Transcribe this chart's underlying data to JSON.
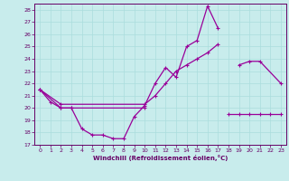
{
  "title": "",
  "xlabel": "Windchill (Refroidissement éolien,°C)",
  "ylabel": "",
  "bg_color": "#c8ecec",
  "line_color": "#990099",
  "grid_color": "#aadddd",
  "xlim": [
    -0.5,
    23.5
  ],
  "ylim": [
    17,
    28.5
  ],
  "yticks": [
    17,
    18,
    19,
    20,
    21,
    22,
    23,
    24,
    25,
    26,
    27,
    28
  ],
  "xticks": [
    0,
    1,
    2,
    3,
    4,
    5,
    6,
    7,
    8,
    9,
    10,
    11,
    12,
    13,
    14,
    15,
    16,
    17,
    18,
    19,
    20,
    21,
    22,
    23
  ],
  "series1_x": [
    0,
    1,
    2,
    3,
    4,
    5,
    6,
    7,
    8,
    9,
    10,
    11,
    12,
    13,
    14,
    15,
    16,
    17
  ],
  "series1_y": [
    21.5,
    20.5,
    20.0,
    20.0,
    18.3,
    17.8,
    17.8,
    17.5,
    17.5,
    19.3,
    20.2,
    22.0,
    23.3,
    22.5,
    25.0,
    25.5,
    28.3,
    26.5
  ],
  "series2_segments": [
    [
      0,
      2,
      3,
      10
    ],
    [
      18,
      19,
      20,
      21,
      22,
      23
    ]
  ],
  "series2_seg_y": [
    [
      21.5,
      20.0,
      20.0,
      20.0
    ],
    [
      19.5,
      19.5,
      19.5,
      19.5,
      19.5,
      19.5
    ]
  ],
  "series3_segments": [
    [
      0,
      2,
      10,
      11,
      12,
      13,
      14,
      15,
      16,
      17
    ],
    [
      19,
      20,
      21,
      23
    ]
  ],
  "series3_seg_y": [
    [
      21.5,
      20.3,
      20.3,
      21.0,
      22.0,
      23.0,
      23.5,
      24.0,
      24.5,
      25.2
    ],
    [
      23.5,
      23.8,
      23.8,
      22.0
    ]
  ]
}
